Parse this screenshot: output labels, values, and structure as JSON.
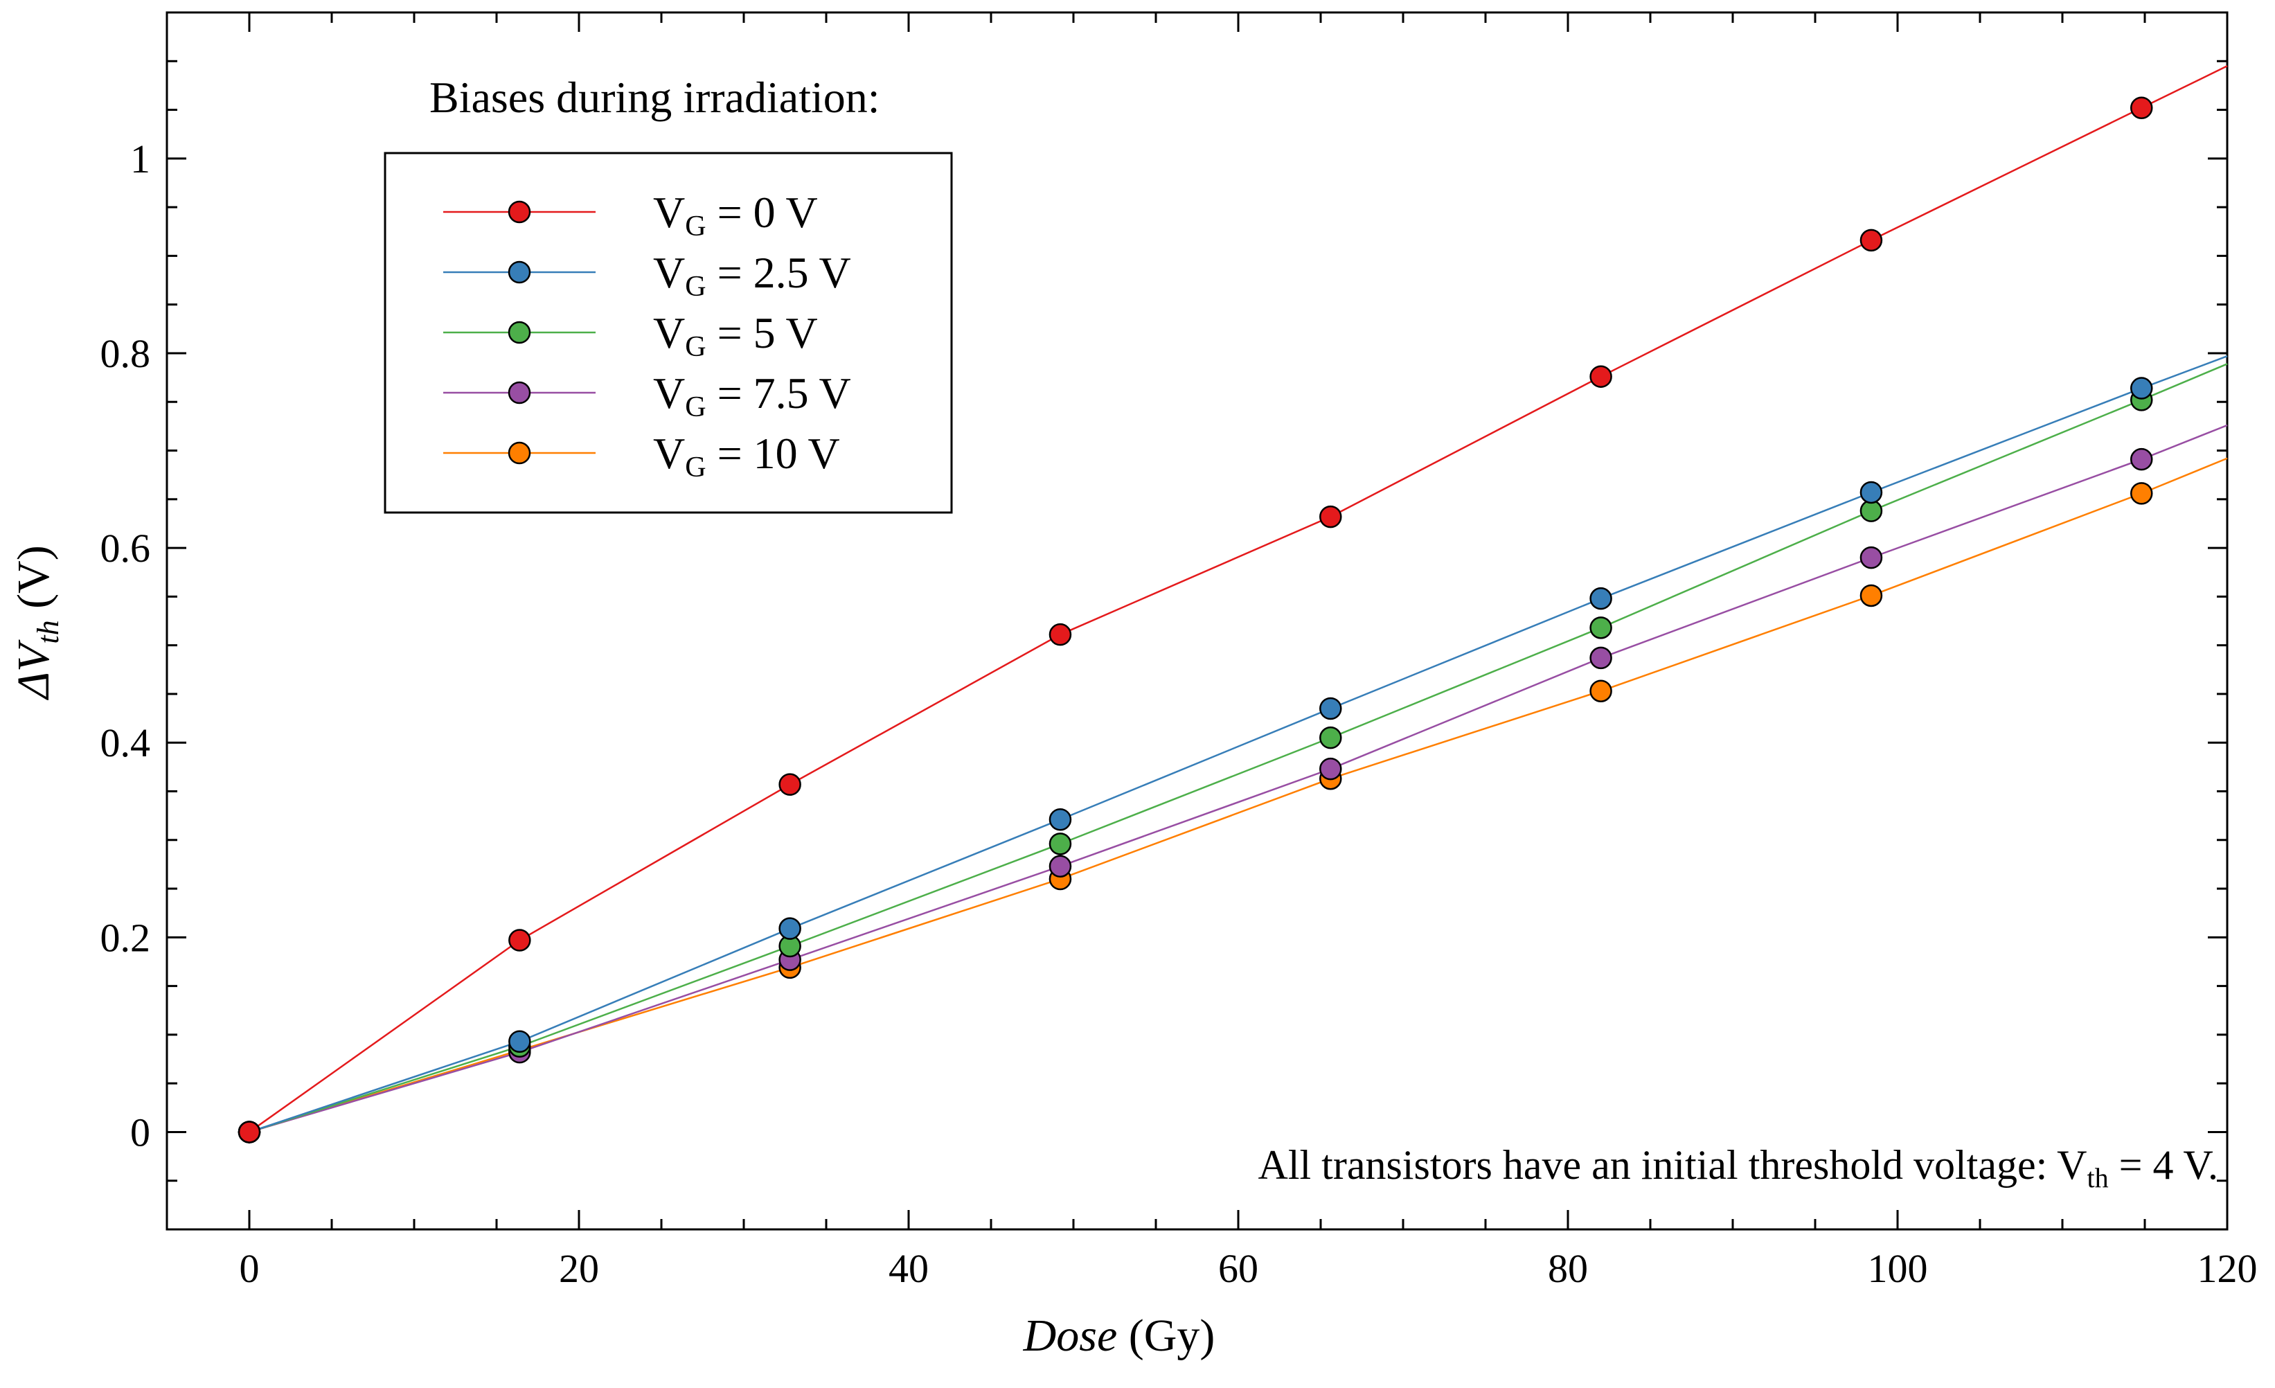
{
  "chart_data": {
    "type": "line",
    "x_axis": {
      "label_italic": "Dose",
      "label_rest": " (Gy)",
      "range": [
        -5,
        120
      ],
      "major_ticks": [
        0,
        20,
        40,
        60,
        80,
        100,
        120
      ],
      "minor_step": 5
    },
    "y_axis": {
      "label_prefix": "ΔV",
      "label_subscript": "th",
      "label_rest": " (V)",
      "range": [
        -0.1,
        1.15
      ],
      "major_ticks": [
        0,
        0.2,
        0.4,
        0.6,
        0.8,
        1
      ],
      "tick_labels": [
        "0",
        "0.2",
        "0.4",
        "0.6",
        "0.8",
        "1"
      ],
      "minor_step": 0.05
    },
    "grid": false,
    "x": [
      0,
      16.4,
      32.8,
      49.2,
      65.6,
      82.0,
      98.4,
      114.8
    ],
    "series": [
      {
        "name_main": "V",
        "name_sub": "G",
        "name_rest": " = 0 V",
        "color": "#e41a1c",
        "values": [
          0,
          0.197,
          0.357,
          0.511,
          0.632,
          0.776,
          0.916,
          1.052
        ],
        "end_value": 1.095
      },
      {
        "name_main": "V",
        "name_sub": "G",
        "name_rest": " = 2.5 V",
        "color": "#377eb8",
        "values": [
          0,
          0.093,
          0.209,
          0.321,
          0.435,
          0.548,
          0.657,
          0.764
        ],
        "end_value": 0.797
      },
      {
        "name_main": "V",
        "name_sub": "G",
        "name_rest": " = 5 V",
        "color": "#4daf4a",
        "values": [
          0,
          0.088,
          0.191,
          0.296,
          0.405,
          0.518,
          0.638,
          0.752
        ],
        "end_value": 0.789
      },
      {
        "name_main": "V",
        "name_sub": "G",
        "name_rest": " = 7.5 V",
        "color": "#984ea3",
        "values": [
          0,
          0.082,
          0.177,
          0.273,
          0.373,
          0.487,
          0.59,
          0.691
        ],
        "end_value": 0.726
      },
      {
        "name_main": "V",
        "name_sub": "G",
        "name_rest": " = 10 V",
        "color": "#ff7f00",
        "values": [
          0,
          0.084,
          0.169,
          0.26,
          0.363,
          0.453,
          0.551,
          0.656
        ],
        "end_value": 0.692
      }
    ],
    "legend": {
      "title": "Biases during irradiation:",
      "placement": "top-left"
    },
    "annotation": {
      "text_main": "All transistors have an initial threshold voltage: V",
      "text_sub": "th",
      "text_rest": " = 4 V.",
      "placement": "bottom-right"
    }
  }
}
